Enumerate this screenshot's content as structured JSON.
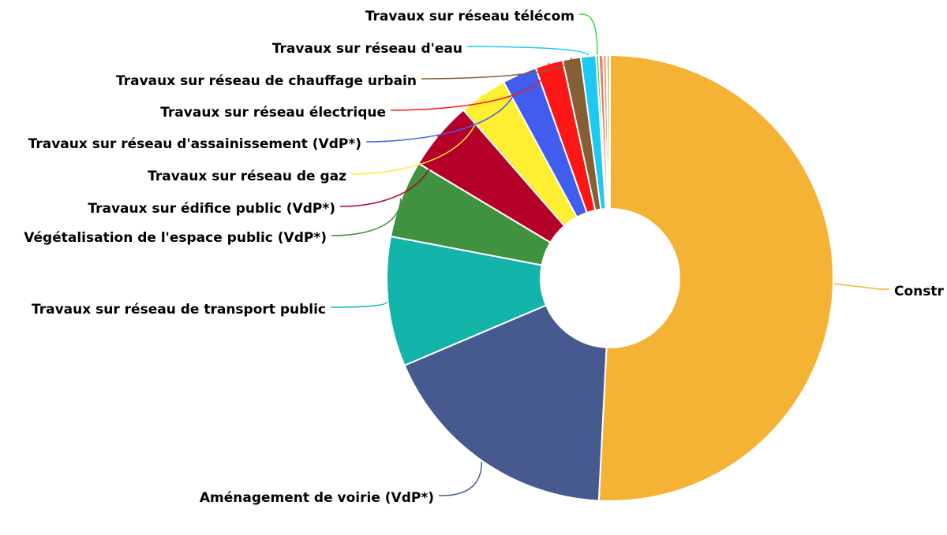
{
  "chart_data": {
    "type": "pie",
    "donut": true,
    "start_angle_deg": 0,
    "legend": "none",
    "slices": [
      {
        "label": "Constr",
        "value": 50.8,
        "color": "#f5b335"
      },
      {
        "label": "Aménagement de voirie (VdP*)",
        "value": 17.8,
        "color": "#465a8f"
      },
      {
        "label": "Travaux sur réseau de transport public",
        "value": 9.4,
        "color": "#13b4aa"
      },
      {
        "label": "Végétalisation de l'espace public (VdP*)",
        "value": 5.6,
        "color": "#409140"
      },
      {
        "label": "Travaux sur édifice public (VdP*)",
        "value": 5.0,
        "color": "#b5002a"
      },
      {
        "label": "Travaux sur réseau de gaz",
        "value": 3.5,
        "color": "#ffef33"
      },
      {
        "label": "Travaux sur réseau d'assainissement (VdP*)",
        "value": 2.5,
        "color": "#415dee"
      },
      {
        "label": "Travaux sur réseau électrique",
        "value": 2.0,
        "color": "#ff1616"
      },
      {
        "label": "Travaux sur réseau de chauffage urbain",
        "value": 1.3,
        "color": "#855f33"
      },
      {
        "label": "Travaux sur réseau d'eau",
        "value": 1.1,
        "color": "#1ec8f3"
      },
      {
        "label": "Travaux sur réseau télécom",
        "value": 0.2,
        "color": "#3fd63f"
      },
      {
        "label": "",
        "value": 0.3,
        "color": "#e8796b"
      },
      {
        "label": "",
        "value": 0.25,
        "color": "#f0a070"
      },
      {
        "label": "",
        "value": 0.25,
        "color": "#d9c9a0"
      }
    ]
  }
}
